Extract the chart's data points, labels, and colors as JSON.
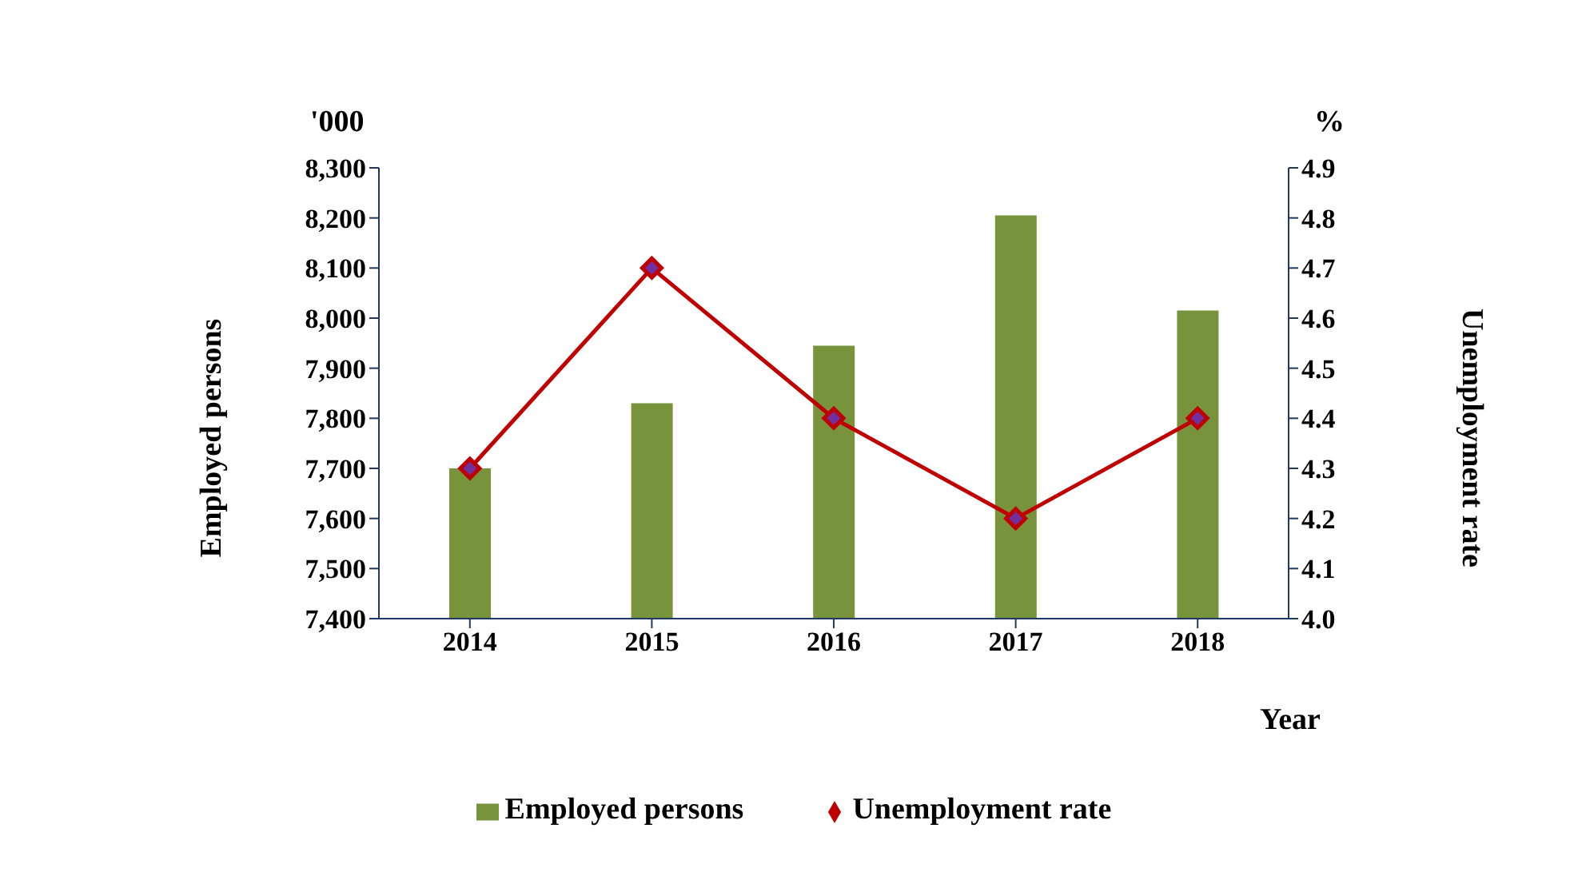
{
  "chart_data": {
    "type": "bar",
    "xlabel": "Year",
    "ylabel": "Employed persons",
    "y2label": "Unemployment rate",
    "annotations": [
      "'000",
      "%"
    ],
    "categories": [
      "2014",
      "2015",
      "2016",
      "2017",
      "2018"
    ],
    "series": [
      {
        "name": "Employed persons",
        "color": "#77933c",
        "values": [
          7700,
          7830,
          7945,
          8205,
          8015
        ]
      },
      {
        "name": "Unemployment rate",
        "type": "line",
        "axis": "y2",
        "color": "#c00000",
        "marker": "diamond",
        "values": [
          4.3,
          4.7,
          4.4,
          4.2,
          4.4
        ]
      }
    ],
    "ylim": [
      7400,
      8300
    ],
    "yticks": [
      {
        "value": 7400,
        "label": "7,400"
      },
      {
        "value": 7500,
        "label": "7,500"
      },
      {
        "value": 7600,
        "label": "7,600"
      },
      {
        "value": 7700,
        "label": "7,700"
      },
      {
        "value": 7800,
        "label": "7,800"
      },
      {
        "value": 7900,
        "label": "7,900"
      },
      {
        "value": 8000,
        "label": "8,000"
      },
      {
        "value": 8100,
        "label": "8,100"
      },
      {
        "value": 8200,
        "label": "8,200"
      },
      {
        "value": 8300,
        "label": "8,300"
      }
    ],
    "y2lim": [
      4.0,
      4.9
    ],
    "y2ticks": [
      {
        "value": 4.0,
        "label": "4.0"
      },
      4.1,
      4.2,
      4.3,
      4.4,
      4.5,
      4.6,
      4.7,
      4.8,
      4.9
    ],
    "grid": false,
    "legend": "bottom"
  }
}
